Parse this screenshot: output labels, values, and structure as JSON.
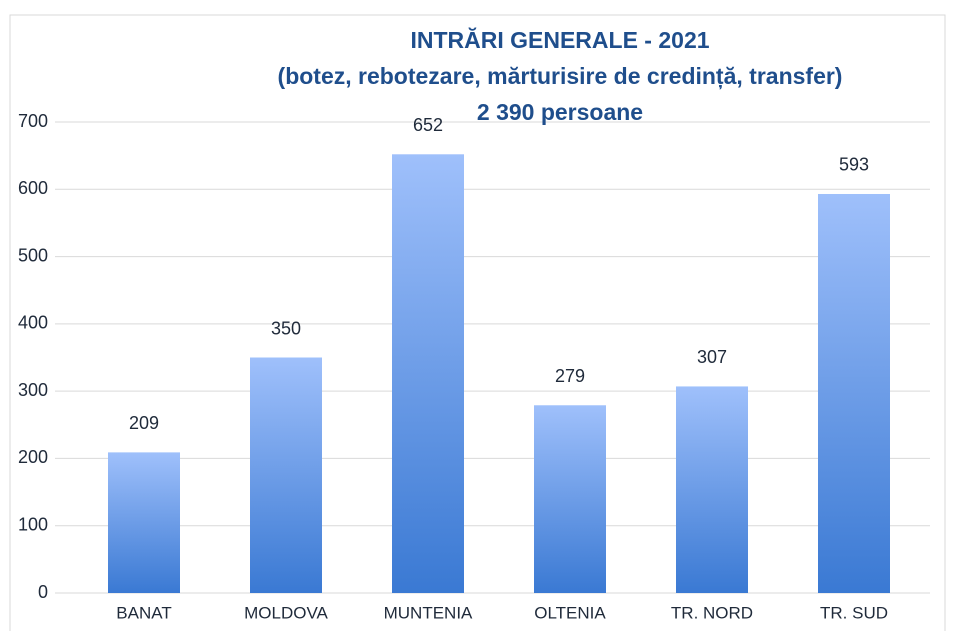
{
  "chart_data": {
    "type": "bar",
    "title": [
      "INTRĂRI GENERALE - 2021",
      "(botez, rebotezare, mărturisire de credință, transfer)",
      "2 390 persoane"
    ],
    "categories": [
      "BANAT",
      "MOLDOVA",
      "MUNTENIA",
      "OLTENIA",
      "TR. NORD",
      "TR. SUD"
    ],
    "values": [
      209,
      350,
      652,
      279,
      307,
      593
    ],
    "color": "#3f7fd8",
    "ylim": [
      0,
      700
    ],
    "yticks": [
      0,
      100,
      200,
      300,
      400,
      500,
      600,
      700
    ],
    "grid": true
  }
}
